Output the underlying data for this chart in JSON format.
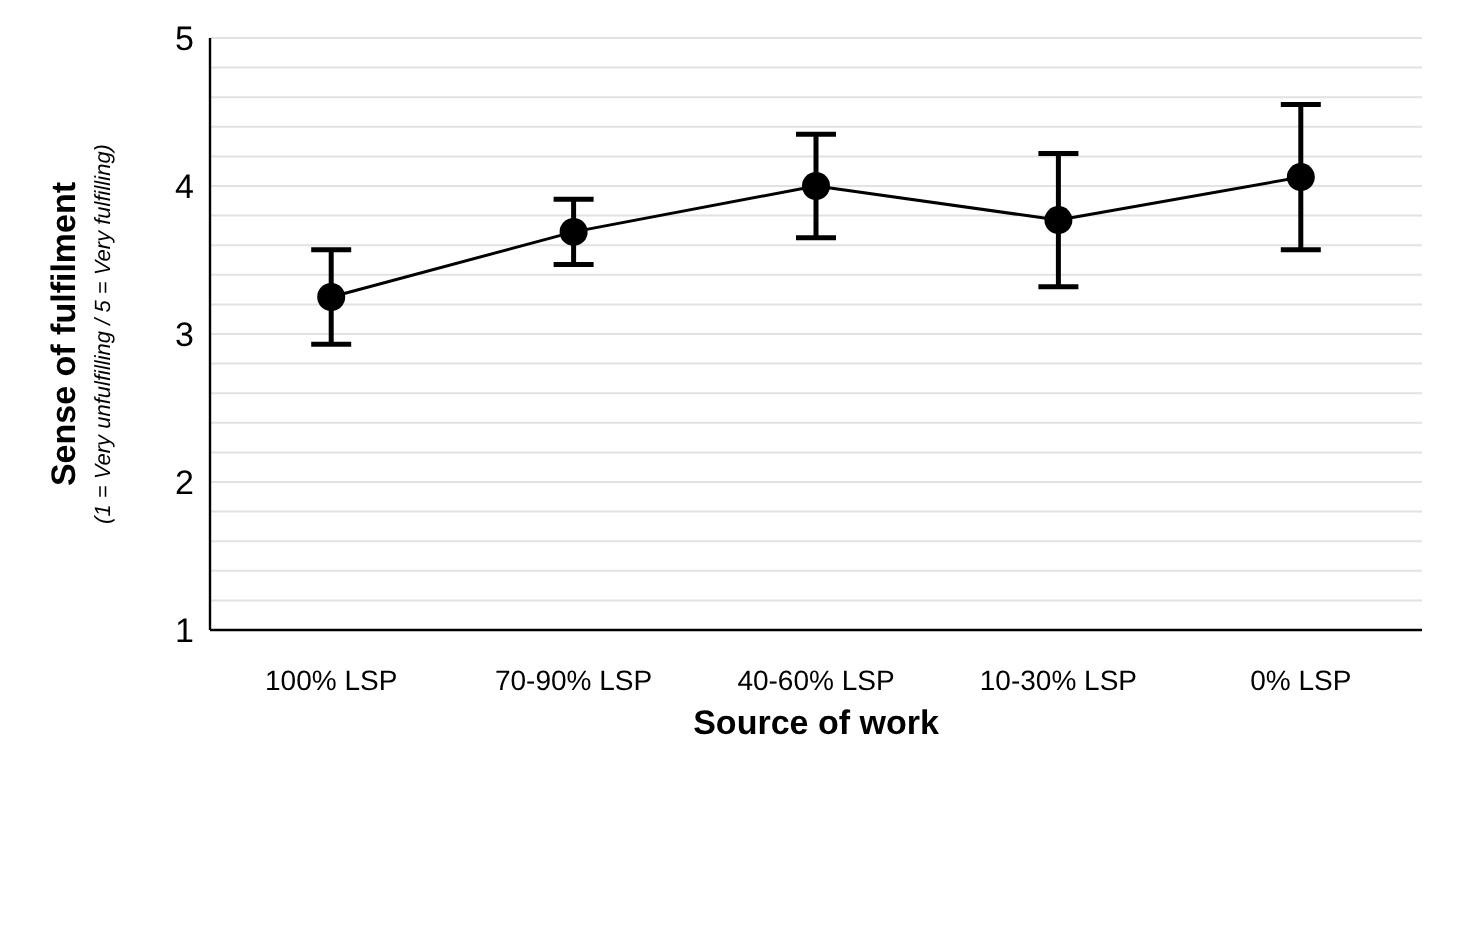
{
  "chart_data": {
    "type": "line",
    "xlabel": "Source of work",
    "ylabel": "Sense of fulfilment",
    "annotations": [
      "(1 = Very unfulfilling / 5 = Very fulfilling)"
    ],
    "categories": [
      "100% LSP",
      "70-90% LSP",
      "40-60% LSP",
      "10-30% LSP",
      "0% LSP"
    ],
    "series": [
      {
        "color": "#000000",
        "values": [
          3.25,
          3.69,
          4.0,
          3.77,
          4.06
        ],
        "errors": [
          0.32,
          0.22,
          0.35,
          0.45,
          0.49
        ]
      }
    ],
    "ylim": [
      1,
      5
    ],
    "yticks": [
      1,
      {
        "value": 1.2,
        "label": null
      },
      {
        "value": 1.4,
        "label": null
      },
      {
        "value": 1.6,
        "label": null
      },
      {
        "value": 1.8,
        "label": null
      },
      2,
      {
        "value": 2.2,
        "label": null
      },
      {
        "value": 2.4,
        "label": null
      },
      {
        "value": 2.6,
        "label": null
      },
      {
        "value": 2.8,
        "label": null
      },
      3,
      {
        "value": 3.2,
        "label": null
      },
      {
        "value": 3.4,
        "label": null
      },
      {
        "value": 3.6,
        "label": null
      },
      {
        "value": 3.8,
        "label": null
      },
      4,
      {
        "value": 4.2,
        "label": null
      },
      {
        "value": 4.4,
        "label": null
      },
      {
        "value": 4.6,
        "label": null
      },
      {
        "value": 4.8,
        "label": null
      },
      5
    ],
    "grid": "y",
    "legend": false,
    "marker": "circle",
    "line_style": "solid"
  }
}
